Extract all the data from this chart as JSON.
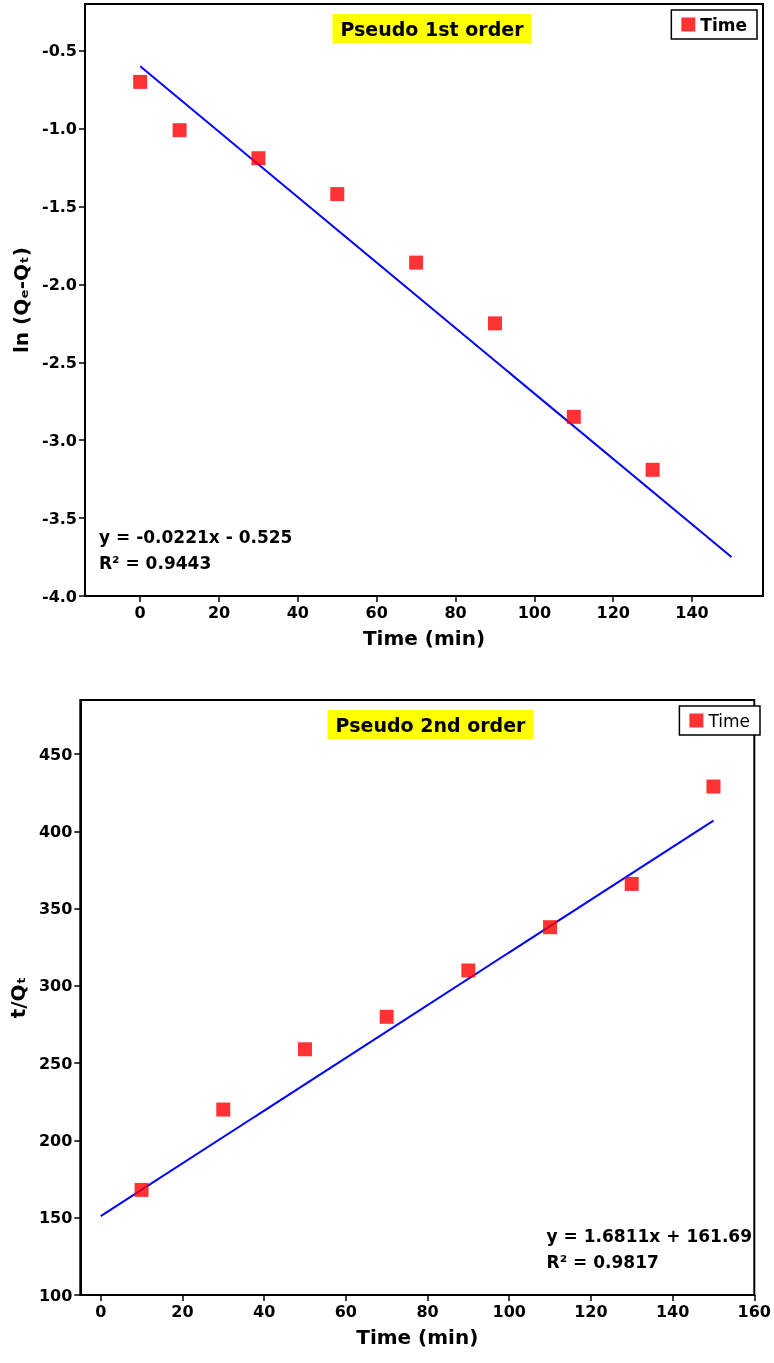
{
  "chart_data": [
    {
      "type": "scatter",
      "title": "Pseudo 1st order",
      "xlabel": "Time (min)",
      "ylabel": "ln (Qₑ-Qₜ)",
      "annotations": [
        "y = -0.0221x - 0.525",
        "R² = 0.9443"
      ],
      "legend": "top right",
      "marker": "square",
      "grid": false,
      "xlim": [
        -14,
        158
      ],
      "xticks": [
        0,
        20,
        40,
        60,
        80,
        100,
        120,
        140
      ],
      "ylim": [
        -4,
        -0.2
      ],
      "yticks": [
        {
          "value": -4,
          "label": "-4.0"
        },
        {
          "value": -3.5,
          "label": "-3.5"
        },
        {
          "value": -3,
          "label": "-3.0"
        },
        {
          "value": -2.5,
          "label": "-2.5"
        },
        {
          "value": -2,
          "label": "-2.0"
        },
        {
          "value": -1.5,
          "label": "-1.5"
        },
        {
          "value": -1,
          "label": "-1.0"
        },
        {
          "value": -0.5,
          "label": "-0.5"
        }
      ],
      "series": [
        {
          "name": "Time",
          "color": "#ff0000",
          "x": [
            0,
            10,
            30,
            50,
            70,
            90,
            110,
            130
          ],
          "values": [
            -0.7,
            -1.01,
            -1.19,
            -1.42,
            -1.86,
            -2.25,
            -2.85,
            -3.19
          ]
        },
        {
          "type": "line",
          "color": "#0000ff",
          "marker": "none",
          "x": [
            0,
            150
          ],
          "values": [
            -0.6,
            -3.75
          ]
        }
      ]
    },
    {
      "type": "scatter",
      "title": "Pseudo 2nd order",
      "xlabel": "Time (min)",
      "ylabel": "t/Qₜ",
      "annotations": [
        "y = 1.6811x + 161.69",
        "R² = 0.9817"
      ],
      "legend": "top right",
      "marker": "square",
      "grid": false,
      "xlim": [
        -5,
        160
      ],
      "xticks": [
        0,
        20,
        40,
        60,
        80,
        100,
        120,
        140,
        160
      ],
      "ylim": [
        100,
        485
      ],
      "yticks": [
        100,
        150,
        200,
        250,
        300,
        350,
        400,
        450
      ],
      "series": [
        {
          "name": "Time",
          "color": "#ff0000",
          "x": [
            10,
            30,
            50,
            70,
            90,
            110,
            130,
            150
          ],
          "values": [
            168,
            220,
            259,
            280,
            310,
            338,
            366,
            429
          ]
        },
        {
          "type": "line",
          "color": "#0000ff",
          "marker": "none",
          "x": [
            0,
            150
          ],
          "values": [
            151,
            407
          ]
        }
      ]
    }
  ]
}
